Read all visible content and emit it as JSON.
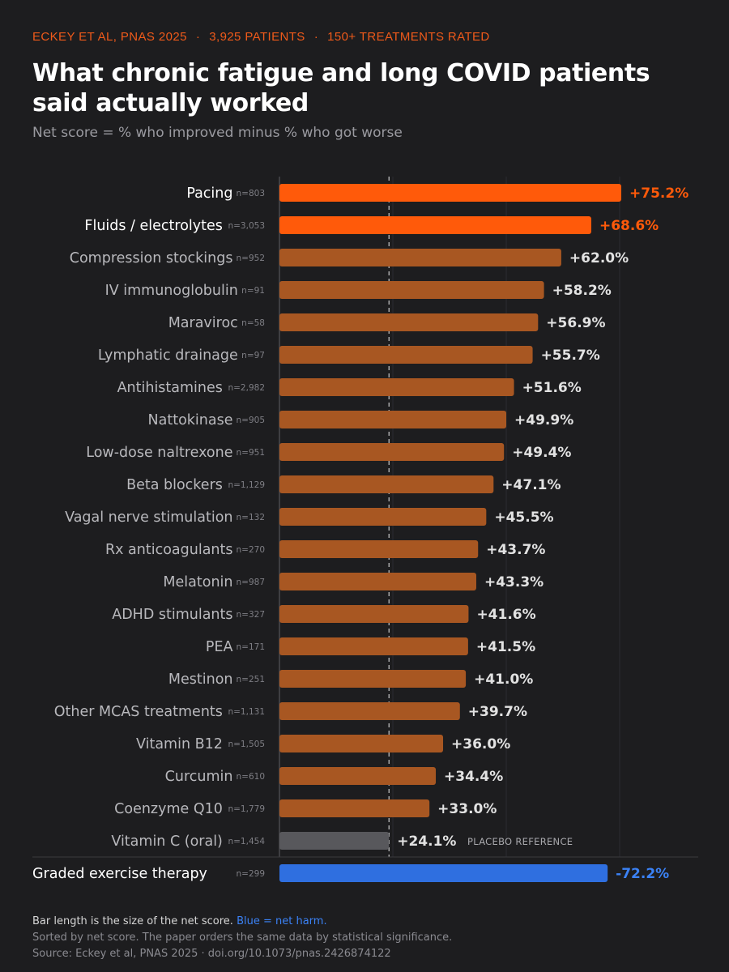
{
  "header": {
    "kicker": [
      "ECKEY ET AL, PNAS 2025",
      "3,925 PATIENTS",
      "150+ TREATMENTS RATED"
    ],
    "kicker_separator": "·",
    "title": "What chronic fatigue and long COVID patients said actually worked",
    "subtitle": "Net score = % who improved minus % who got worse"
  },
  "colors": {
    "background": "#1d1d1f",
    "highlight": "#ff5a0a",
    "default_bar": "#a85722",
    "placebo": "#58585c",
    "harm": "#2f6fe0",
    "harm_text": "#3b82f6"
  },
  "chart_data": {
    "type": "bar",
    "orientation": "horizontal",
    "title": "What chronic fatigue and long COVID patients said actually worked",
    "subtitle": "Net score = % who improved minus % who got worse",
    "xlim": [
      0,
      75.2
    ],
    "grid": true,
    "reference_line": 24.1,
    "reference_label": "PLACEBO REFERENCE",
    "items": [
      {
        "name": "Pacing",
        "n": "n=803",
        "value": 75.2,
        "label": "+75.2%",
        "group": "highlight"
      },
      {
        "name": "Fluids / electrolytes",
        "n": "n=3,053",
        "value": 68.6,
        "label": "+68.6%",
        "group": "highlight"
      },
      {
        "name": "Compression stockings",
        "n": "n=952",
        "value": 62.0,
        "label": "+62.0%",
        "group": "default"
      },
      {
        "name": "IV immunoglobulin",
        "n": "n=91",
        "value": 58.2,
        "label": "+58.2%",
        "group": "default"
      },
      {
        "name": "Maraviroc",
        "n": "n=58",
        "value": 56.9,
        "label": "+56.9%",
        "group": "default"
      },
      {
        "name": "Lymphatic drainage",
        "n": "n=97",
        "value": 55.7,
        "label": "+55.7%",
        "group": "default"
      },
      {
        "name": "Antihistamines",
        "n": "n=2,982",
        "value": 51.6,
        "label": "+51.6%",
        "group": "default"
      },
      {
        "name": "Nattokinase",
        "n": "n=905",
        "value": 49.9,
        "label": "+49.9%",
        "group": "default"
      },
      {
        "name": "Low-dose naltrexone",
        "n": "n=951",
        "value": 49.4,
        "label": "+49.4%",
        "group": "default"
      },
      {
        "name": "Beta blockers",
        "n": "n=1,129",
        "value": 47.1,
        "label": "+47.1%",
        "group": "default"
      },
      {
        "name": "Vagal nerve stimulation",
        "n": "n=132",
        "value": 45.5,
        "label": "+45.5%",
        "group": "default"
      },
      {
        "name": "Rx anticoagulants",
        "n": "n=270",
        "value": 43.7,
        "label": "+43.7%",
        "group": "default"
      },
      {
        "name": "Melatonin",
        "n": "n=987",
        "value": 43.3,
        "label": "+43.3%",
        "group": "default"
      },
      {
        "name": "ADHD stimulants",
        "n": "n=327",
        "value": 41.6,
        "label": "+41.6%",
        "group": "default"
      },
      {
        "name": "PEA",
        "n": "n=171",
        "value": 41.5,
        "label": "+41.5%",
        "group": "default"
      },
      {
        "name": "Mestinon",
        "n": "n=251",
        "value": 41.0,
        "label": "+41.0%",
        "group": "default"
      },
      {
        "name": "Other MCAS treatments",
        "n": "n=1,131",
        "value": 39.7,
        "label": "+39.7%",
        "group": "default"
      },
      {
        "name": "Vitamin B12",
        "n": "n=1,505",
        "value": 36.0,
        "label": "+36.0%",
        "group": "default"
      },
      {
        "name": "Curcumin",
        "n": "n=610",
        "value": 34.4,
        "label": "+34.4%",
        "group": "default"
      },
      {
        "name": "Coenzyme Q10",
        "n": "n=1,779",
        "value": 33.0,
        "label": "+33.0%",
        "group": "default"
      },
      {
        "name": "Vitamin C (oral)",
        "n": "n=1,454",
        "value": 24.1,
        "label": "+24.1%",
        "group": "placebo"
      }
    ],
    "harm_item": {
      "name": "Graded exercise therapy",
      "n": "n=299",
      "value": -72.2,
      "label": "-72.2%",
      "group": "harm"
    }
  },
  "footer": {
    "line1": "Bar length is the size of the net score.",
    "line1_harm": "Blue = net harm.",
    "line2": "Sorted by net score. The paper orders the same data by statistical significance.",
    "line3": "Source: Eckey et al, PNAS 2025 · doi.org/10.1073/pnas.2426874122"
  }
}
